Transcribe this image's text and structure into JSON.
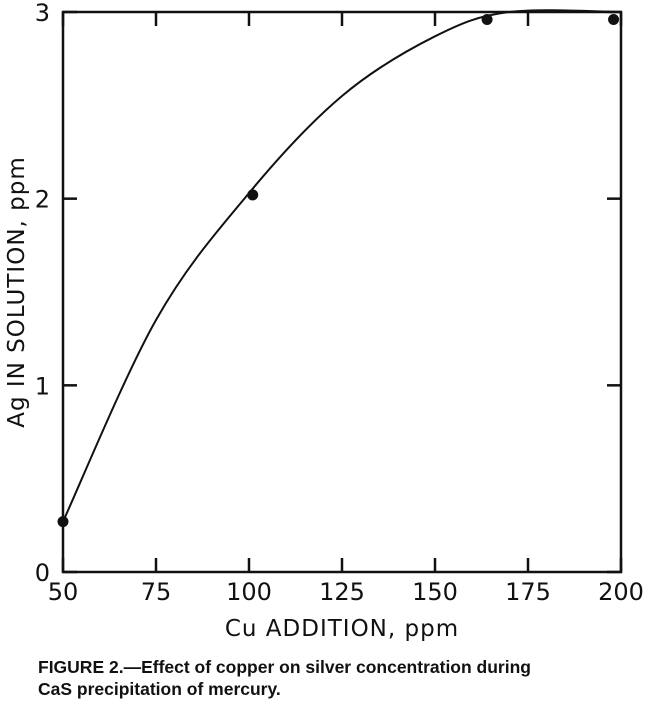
{
  "chart_data": {
    "type": "scatter",
    "xlabel": "Cu ADDITION, ppm",
    "ylabel": "Ag IN SOLUTION, ppm",
    "xlim": [
      50,
      200
    ],
    "ylim": [
      0,
      3
    ],
    "x_ticks": [
      "50",
      "75",
      "100",
      "125",
      "150",
      "175",
      "200"
    ],
    "y_ticks": [
      "0",
      "1",
      "2",
      "3"
    ],
    "grid": false,
    "series": [
      {
        "points": [
          {
            "x": 50,
            "y": 0.27
          },
          {
            "x": 101,
            "y": 2.02
          },
          {
            "x": 164,
            "y": 2.96
          },
          {
            "x": 198,
            "y": 2.96
          }
        ],
        "curve": [
          {
            "x": 50,
            "y": 0.27
          },
          {
            "x": 75,
            "y": 1.35
          },
          {
            "x": 100,
            "y": 2.03
          },
          {
            "x": 125,
            "y": 2.55
          },
          {
            "x": 150,
            "y": 2.87
          },
          {
            "x": 170,
            "y": 3.0
          },
          {
            "x": 200,
            "y": 3.0
          }
        ]
      }
    ]
  },
  "caption": {
    "line1": "FIGURE 2.—Effect of copper on silver concentration during",
    "line2": "CaS precipitation of mercury."
  }
}
